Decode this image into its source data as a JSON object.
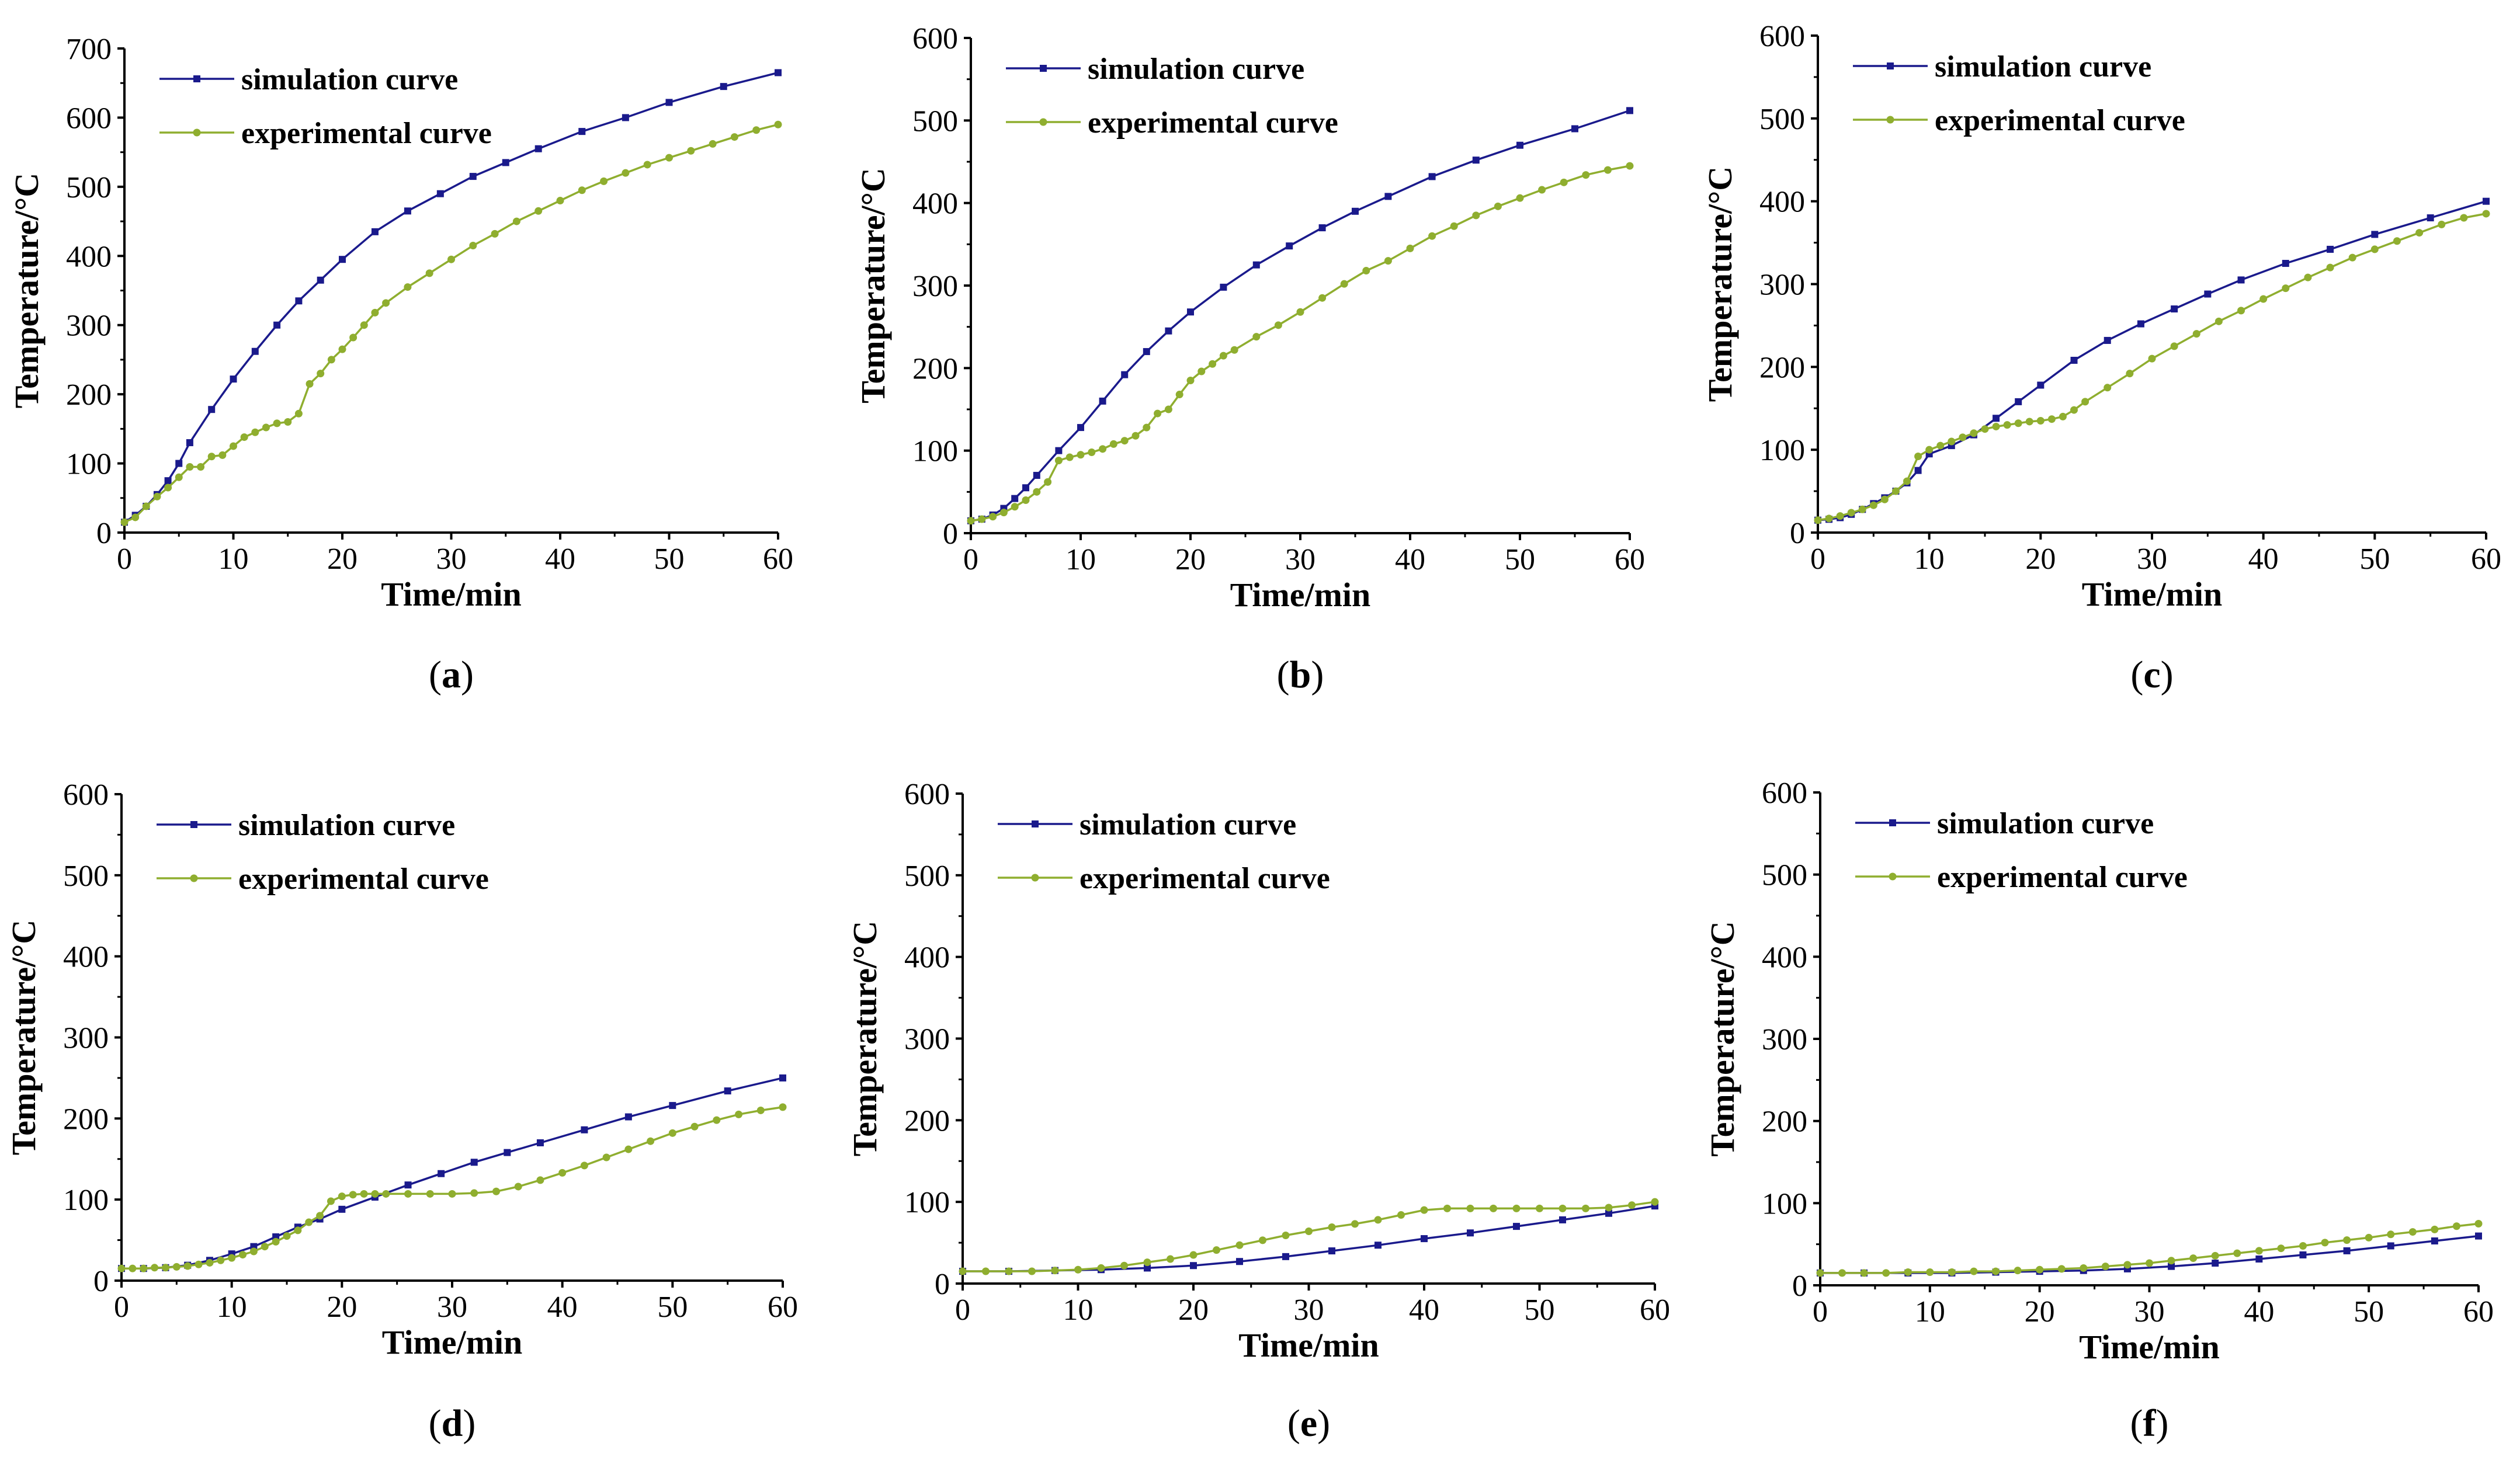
{
  "colors": {
    "simulation": "#1a1a8c",
    "experimental": "#8fae2f",
    "axis": "#000000"
  },
  "chart_data": [
    {
      "id": "a",
      "type": "line",
      "caption_open": "(",
      "caption_letter": "a",
      "caption_close": ")",
      "xlabel": "Time/min",
      "ylabel": "Temperature/°C",
      "xlim": [
        0,
        60
      ],
      "ylim": [
        0,
        700
      ],
      "xticks": [
        "0",
        "10",
        "20",
        "30",
        "40",
        "50",
        "60"
      ],
      "yticks": [
        "0",
        "100",
        "200",
        "300",
        "400",
        "500",
        "600",
        "700"
      ],
      "legend_position": "top-left",
      "series": [
        {
          "name": "simulation curve",
          "x": [
            0,
            1,
            2,
            3,
            4,
            5,
            6,
            8,
            10,
            12,
            14,
            16,
            18,
            20,
            23,
            26,
            29,
            32,
            35,
            38,
            42,
            46,
            50,
            55,
            60
          ],
          "y": [
            15,
            25,
            38,
            55,
            75,
            100,
            130,
            178,
            222,
            262,
            300,
            335,
            365,
            395,
            435,
            465,
            490,
            515,
            535,
            555,
            580,
            600,
            622,
            645,
            665
          ]
        },
        {
          "name": "experimental curve",
          "x": [
            0,
            1,
            2,
            3,
            4,
            5,
            6,
            7,
            8,
            9,
            10,
            11,
            12,
            13,
            14,
            15,
            16,
            17,
            18,
            19,
            20,
            21,
            22,
            23,
            24,
            26,
            28,
            30,
            32,
            34,
            36,
            38,
            40,
            42,
            44,
            46,
            48,
            50,
            52,
            54,
            56,
            58,
            60
          ],
          "y": [
            15,
            22,
            38,
            52,
            65,
            80,
            95,
            95,
            110,
            112,
            125,
            138,
            145,
            152,
            158,
            160,
            172,
            215,
            230,
            250,
            265,
            282,
            300,
            318,
            332,
            355,
            375,
            395,
            415,
            432,
            450,
            465,
            480,
            495,
            508,
            520,
            532,
            542,
            552,
            562,
            572,
            582,
            590
          ]
        }
      ]
    },
    {
      "id": "b",
      "type": "line",
      "caption_open": "(",
      "caption_letter": "b",
      "caption_close": ")",
      "xlabel": "Time/min",
      "ylabel": "Temperature/°C",
      "xlim": [
        0,
        60
      ],
      "ylim": [
        0,
        600
      ],
      "xticks": [
        "0",
        "10",
        "20",
        "30",
        "40",
        "50",
        "60"
      ],
      "yticks": [
        "0",
        "100",
        "200",
        "300",
        "400",
        "500",
        "600"
      ],
      "legend_position": "top-left",
      "series": [
        {
          "name": "simulation curve",
          "x": [
            0,
            1,
            2,
            3,
            4,
            5,
            6,
            8,
            10,
            12,
            14,
            16,
            18,
            20,
            23,
            26,
            29,
            32,
            35,
            38,
            42,
            46,
            50,
            55,
            60
          ],
          "y": [
            15,
            17,
            22,
            30,
            42,
            55,
            70,
            100,
            128,
            160,
            192,
            220,
            245,
            268,
            298,
            325,
            348,
            370,
            390,
            408,
            432,
            452,
            470,
            490,
            512
          ]
        },
        {
          "name": "experimental curve",
          "x": [
            0,
            1,
            2,
            3,
            4,
            5,
            6,
            7,
            8,
            9,
            10,
            11,
            12,
            13,
            14,
            15,
            16,
            17,
            18,
            19,
            20,
            21,
            22,
            23,
            24,
            26,
            28,
            30,
            32,
            34,
            36,
            38,
            40,
            42,
            44,
            46,
            48,
            50,
            52,
            54,
            56,
            58,
            60
          ],
          "y": [
            15,
            17,
            20,
            25,
            32,
            40,
            50,
            62,
            88,
            92,
            95,
            98,
            102,
            108,
            112,
            118,
            128,
            145,
            150,
            168,
            185,
            196,
            205,
            215,
            222,
            238,
            252,
            268,
            285,
            302,
            318,
            330,
            345,
            360,
            372,
            385,
            396,
            406,
            416,
            425,
            434,
            440,
            445
          ]
        }
      ]
    },
    {
      "id": "c",
      "type": "line",
      "caption_open": "(",
      "caption_letter": "c",
      "caption_close": ")",
      "xlabel": "Time/min",
      "ylabel": "Temperature/°C",
      "xlim": [
        0,
        60
      ],
      "ylim": [
        0,
        600
      ],
      "xticks": [
        "0",
        "10",
        "20",
        "30",
        "40",
        "50",
        "60"
      ],
      "yticks": [
        "0",
        "100",
        "200",
        "300",
        "400",
        "500",
        "600"
      ],
      "legend_position": "top-left",
      "series": [
        {
          "name": "simulation curve",
          "x": [
            0,
            1,
            2,
            3,
            4,
            5,
            6,
            7,
            8,
            9,
            10,
            12,
            14,
            16,
            18,
            20,
            23,
            26,
            29,
            32,
            35,
            38,
            42,
            46,
            50,
            55,
            60
          ],
          "y": [
            15,
            16,
            18,
            22,
            28,
            35,
            42,
            50,
            60,
            75,
            95,
            105,
            118,
            138,
            158,
            178,
            208,
            232,
            252,
            270,
            288,
            305,
            325,
            342,
            360,
            380,
            400
          ]
        },
        {
          "name": "experimental curve",
          "x": [
            0,
            1,
            2,
            3,
            4,
            5,
            6,
            7,
            8,
            9,
            10,
            11,
            12,
            13,
            14,
            15,
            16,
            17,
            18,
            19,
            20,
            21,
            22,
            23,
            24,
            26,
            28,
            30,
            32,
            34,
            36,
            38,
            40,
            42,
            44,
            46,
            48,
            50,
            52,
            54,
            56,
            58,
            60
          ],
          "y": [
            15,
            17,
            20,
            24,
            28,
            33,
            40,
            50,
            62,
            92,
            100,
            105,
            110,
            115,
            120,
            125,
            128,
            130,
            132,
            134,
            135,
            137,
            140,
            148,
            158,
            175,
            192,
            210,
            225,
            240,
            255,
            268,
            282,
            295,
            308,
            320,
            332,
            342,
            352,
            362,
            372,
            380,
            385
          ]
        }
      ]
    },
    {
      "id": "d",
      "type": "line",
      "caption_open": "(",
      "caption_letter": "d",
      "caption_close": ")",
      "xlabel": "Time/min",
      "ylabel": "Temperature/°C",
      "xlim": [
        0,
        60
      ],
      "ylim": [
        0,
        600
      ],
      "xticks": [
        "0",
        "10",
        "20",
        "30",
        "40",
        "50",
        "60"
      ],
      "yticks": [
        "0",
        "100",
        "200",
        "300",
        "400",
        "500",
        "600"
      ],
      "legend_position": "top-left",
      "series": [
        {
          "name": "simulation curve",
          "x": [
            0,
            2,
            4,
            6,
            8,
            10,
            12,
            14,
            16,
            18,
            20,
            23,
            26,
            29,
            32,
            35,
            38,
            42,
            46,
            50,
            55,
            60
          ],
          "y": [
            15,
            15,
            16,
            19,
            25,
            33,
            42,
            54,
            66,
            76,
            88,
            103,
            118,
            132,
            146,
            158,
            170,
            186,
            202,
            216,
            234,
            250
          ]
        },
        {
          "name": "experimental curve",
          "x": [
            0,
            1,
            2,
            3,
            4,
            5,
            6,
            7,
            8,
            9,
            10,
            11,
            12,
            13,
            14,
            15,
            16,
            17,
            18,
            19,
            20,
            21,
            22,
            23,
            24,
            26,
            28,
            30,
            32,
            34,
            36,
            38,
            40,
            42,
            44,
            46,
            48,
            50,
            52,
            54,
            56,
            58,
            60
          ],
          "y": [
            15,
            15,
            15,
            16,
            16,
            17,
            18,
            20,
            22,
            25,
            28,
            32,
            36,
            42,
            48,
            55,
            62,
            72,
            80,
            98,
            104,
            106,
            107,
            107,
            107,
            107,
            107,
            107,
            108,
            110,
            116,
            124,
            133,
            142,
            152,
            162,
            172,
            182,
            190,
            198,
            205,
            210,
            214
          ]
        }
      ]
    },
    {
      "id": "e",
      "type": "line",
      "caption_open": "(",
      "caption_letter": "e",
      "caption_close": ")",
      "xlabel": "Time/min",
      "ylabel": "Temperature/°C",
      "xlim": [
        0,
        60
      ],
      "ylim": [
        0,
        600
      ],
      "xticks": [
        "0",
        "10",
        "20",
        "30",
        "40",
        "50",
        "60"
      ],
      "yticks": [
        "0",
        "100",
        "200",
        "300",
        "400",
        "500",
        "600"
      ],
      "legend_position": "top-left",
      "series": [
        {
          "name": "simulation curve",
          "x": [
            0,
            4,
            8,
            12,
            16,
            20,
            24,
            28,
            32,
            36,
            40,
            44,
            48,
            52,
            56,
            60
          ],
          "y": [
            15,
            15,
            16,
            17,
            19,
            22,
            27,
            33,
            40,
            47,
            55,
            62,
            70,
            78,
            86,
            95
          ]
        },
        {
          "name": "experimental curve",
          "x": [
            0,
            2,
            4,
            6,
            8,
            10,
            12,
            14,
            16,
            18,
            20,
            22,
            24,
            26,
            28,
            30,
            32,
            34,
            36,
            38,
            40,
            42,
            44,
            46,
            48,
            50,
            52,
            54,
            56,
            58,
            60
          ],
          "y": [
            15,
            15,
            15,
            15,
            16,
            17,
            19,
            22,
            26,
            30,
            35,
            41,
            47,
            53,
            59,
            64,
            69,
            73,
            78,
            84,
            90,
            92,
            92,
            92,
            92,
            92,
            92,
            92,
            93,
            96,
            100
          ]
        }
      ]
    },
    {
      "id": "f",
      "type": "line",
      "caption_open": "(",
      "caption_letter": "f",
      "caption_close": ")",
      "xlabel": "Time/min",
      "ylabel": "Temperature/°C",
      "xlim": [
        0,
        60
      ],
      "ylim": [
        0,
        600
      ],
      "xticks": [
        "0",
        "10",
        "20",
        "30",
        "40",
        "50",
        "60"
      ],
      "yticks": [
        "0",
        "100",
        "200",
        "300",
        "400",
        "500",
        "600"
      ],
      "legend_position": "top-left",
      "series": [
        {
          "name": "simulation curve",
          "x": [
            0,
            4,
            8,
            12,
            16,
            20,
            24,
            28,
            32,
            36,
            40,
            44,
            48,
            52,
            56,
            60
          ],
          "y": [
            15,
            15,
            15,
            15,
            16,
            17,
            18,
            20,
            23,
            27,
            32,
            37,
            42,
            48,
            54,
            60
          ]
        },
        {
          "name": "experimental curve",
          "x": [
            0,
            2,
            4,
            6,
            8,
            10,
            12,
            14,
            16,
            18,
            20,
            22,
            24,
            26,
            28,
            30,
            32,
            34,
            36,
            38,
            40,
            42,
            44,
            46,
            48,
            50,
            52,
            54,
            56,
            58,
            60
          ],
          "y": [
            15,
            15,
            15,
            15,
            16,
            16,
            16,
            17,
            17,
            18,
            19,
            20,
            21,
            23,
            25,
            27,
            30,
            33,
            36,
            39,
            42,
            45,
            48,
            52,
            55,
            58,
            62,
            65,
            68,
            72,
            75
          ]
        }
      ]
    }
  ]
}
